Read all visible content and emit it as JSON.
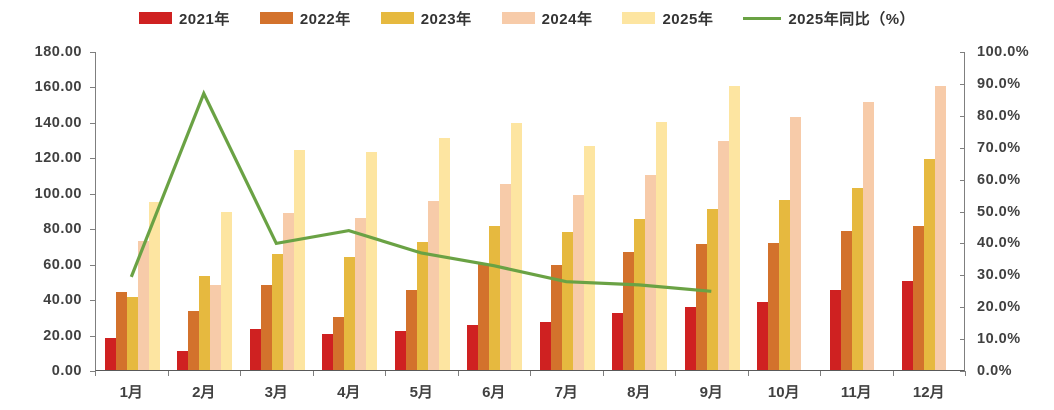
{
  "legend": {
    "items": [
      {
        "label": "2021年",
        "color": "#cf2121",
        "type": "bar"
      },
      {
        "label": "2022年",
        "color": "#d3722c",
        "type": "bar"
      },
      {
        "label": "2023年",
        "color": "#e6b93f",
        "type": "bar"
      },
      {
        "label": "2024年",
        "color": "#f7cba9",
        "type": "bar"
      },
      {
        "label": "2025年",
        "color": "#fde5a1",
        "type": "bar"
      },
      {
        "label": "2025年同比（%）",
        "color": "#6aa244",
        "type": "line"
      }
    ]
  },
  "chart_data": {
    "type": "bar",
    "categories": [
      "1月",
      "2月",
      "3月",
      "4月",
      "5月",
      "6月",
      "7月",
      "8月",
      "9月",
      "10月",
      "11月",
      "12月"
    ],
    "series": [
      {
        "name": "2021年",
        "color": "#cf2121",
        "values": [
          18,
          11,
          23,
          20.5,
          22,
          25.5,
          27,
          32,
          35.5,
          38.5,
          45,
          50
        ]
      },
      {
        "name": "2022年",
        "color": "#d3722c",
        "values": [
          44,
          33.5,
          48,
          30,
          45,
          60,
          59.5,
          66.5,
          71,
          71.5,
          78.5,
          81.5
        ]
      },
      {
        "name": "2023年",
        "color": "#e6b93f",
        "values": [
          41,
          53,
          65.5,
          63.5,
          72,
          81,
          78,
          85,
          91,
          96,
          102.5,
          119
        ]
      },
      {
        "name": "2024年",
        "color": "#f7cba9",
        "values": [
          73,
          48,
          88.5,
          85.5,
          95.5,
          105,
          99,
          110,
          129,
          143,
          151,
          160
        ]
      },
      {
        "name": "2025年",
        "color": "#fde5a1",
        "values": [
          95,
          89,
          124,
          123,
          131,
          139.5,
          126.5,
          140,
          160.5,
          null,
          null,
          null
        ]
      }
    ],
    "line_series": {
      "name": "2025年同比（%）",
      "color": "#6aa244",
      "axis": "right",
      "values": [
        29.5,
        87,
        40,
        44,
        37,
        33,
        28,
        27,
        25,
        null,
        null,
        null
      ]
    },
    "left_axis": {
      "min": 0,
      "max": 180,
      "step": 20,
      "tick_format": "0.00"
    },
    "right_axis": {
      "min": 0,
      "max": 100,
      "step": 10,
      "tick_format": "0.0%"
    },
    "grid": false,
    "legend_position": "top",
    "title": "",
    "xlabel": "",
    "ylabel": ""
  }
}
